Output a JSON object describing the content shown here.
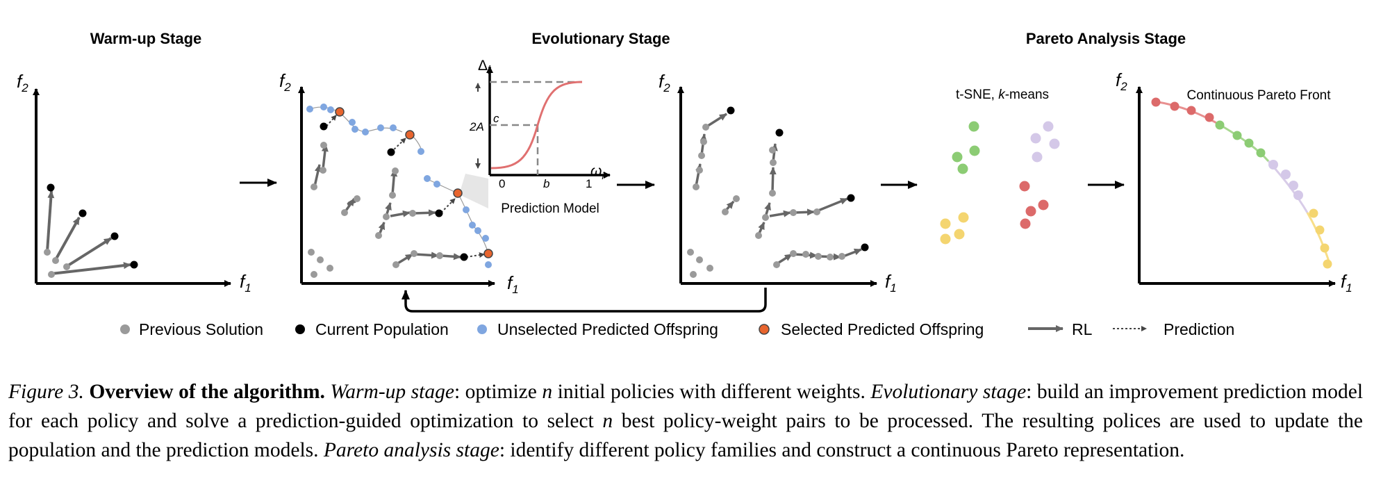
{
  "stages": {
    "warmup": "Warm-up Stage",
    "evolutionary": "Evolutionary Stage",
    "pareto": "Pareto Analysis Stage"
  },
  "axes": {
    "f": "f",
    "x_sub": "1",
    "y_sub": "2"
  },
  "inset": {
    "y_label": "Δ",
    "y_sub": "i",
    "x_label": "ω",
    "x_sub": "i",
    "tick_2A": "2A",
    "tick_c": "c",
    "tick_0": "0",
    "tick_b": "b",
    "tick_1": "1",
    "title": "Prediction Model"
  },
  "pareto_panel": {
    "tsne_label": "t-SNE, ",
    "k": "k",
    "kmeans": "-means",
    "front_label": "Continuous Pareto Front"
  },
  "legend": {
    "previous": "Previous Solution",
    "current": "Current Population",
    "unselected": "Unselected Predicted Offspring",
    "selected": "Selected Predicted Offspring",
    "rl": "RL",
    "prediction": "Prediction"
  },
  "colors": {
    "previous": "#9a9a9a",
    "current": "#000000",
    "unselected": "#7fa6e0",
    "selected": "#e8652e",
    "arrow": "#666666",
    "curve": "#e07070",
    "green": "#8ccc74",
    "lavender": "#d4c8e8",
    "red": "#dc6a6a",
    "yellow": "#f4d570"
  },
  "caption": {
    "fig_label": "Figure 3.",
    "title": "Overview of the algorithm.",
    "warmup_label": "Warm-up stage",
    "warmup_text_1": ": optimize ",
    "n1": "n",
    "warmup_text_2": " initial policies with different weights. ",
    "evo_label": "Evolutionary stage",
    "evo_text_1": ": build an improvement prediction model for each policy and solve a prediction-guided optimization to select ",
    "n2": "n",
    "evo_text_2": " best policy-weight pairs to be processed. The resulting polices are used to update the population and the prediction models. ",
    "pareto_label": "Pareto analysis stage",
    "pareto_text": ": identify different policy families and construct a continuous Pareto representation."
  }
}
